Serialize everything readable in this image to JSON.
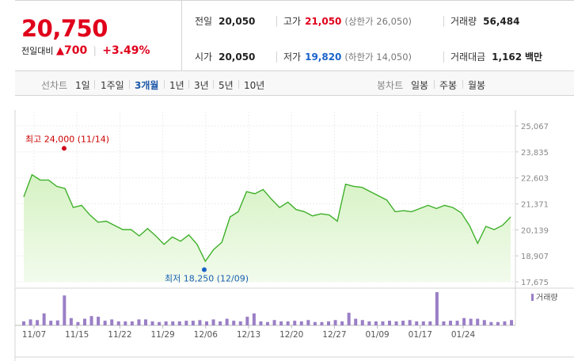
{
  "quote": {
    "price": "20,750",
    "change_label": "전일대비",
    "change_arrow": "▲",
    "change_amount": "700",
    "change_pct": "+3.49%",
    "prev_close_label": "전일",
    "prev_close": "20,050",
    "high_label": "고가",
    "high": "21,050",
    "upper_limit": "(상한가 26,050)",
    "volume_label": "거래량",
    "volume": "56,484",
    "open_label": "시가",
    "open": "20,050",
    "low_label": "저가",
    "low": "19,820",
    "lower_limit": "(하한가 14,050)",
    "value_label": "거래대금",
    "value": "1,162",
    "value_unit": "백만",
    "colors": {
      "up": "#e0001b",
      "down": "#1a63c9"
    }
  },
  "tabs": {
    "line_label": "선차트",
    "periods": [
      "1일",
      "1주일",
      "3개월",
      "1년",
      "3년",
      "5년",
      "10년"
    ],
    "active_period": "3개월",
    "candle_label": "봉차트",
    "candle_periods": [
      "일봉",
      "주봉",
      "월봉"
    ]
  },
  "chart_data": {
    "type": "area",
    "ylim": [
      17675,
      25067
    ],
    "yticks": [
      "25,067",
      "23,835",
      "22,603",
      "21,371",
      "20,139",
      "18,907",
      "17,675"
    ],
    "xticks": [
      "11/07",
      "11/15",
      "11/22",
      "11/29",
      "12/06",
      "12/13",
      "12/20",
      "12/27",
      "01/09",
      "01/17",
      "01/24"
    ],
    "series": [
      {
        "values": [
          21700,
          22750,
          22500,
          22500,
          22200,
          22100,
          21200,
          21300,
          20850,
          20500,
          20550,
          20350,
          20150,
          20150,
          19850,
          20200,
          19850,
          19450,
          19800,
          19600,
          19900,
          19450,
          18650,
          19200,
          19550,
          20750,
          21000,
          21950,
          21850,
          22050,
          21600,
          21200,
          21450,
          21100,
          21000,
          20800,
          20900,
          20850,
          20550,
          22300,
          22200,
          22150,
          21950,
          21750,
          21550,
          21000,
          21050,
          21000,
          21150,
          21300,
          21150,
          21300,
          21200,
          20950,
          20350,
          19500,
          20300,
          20150,
          20350,
          20750
        ]
      }
    ],
    "annotations": {
      "high": {
        "label": "최고 24,000 (11/14)",
        "value": 24000
      },
      "low": {
        "label": "최저 18,250 (12/09)",
        "value": 18250
      }
    },
    "line_color": "#3eb02a",
    "fill_color": "#d6f2c4",
    "volume": {
      "legend": "거래량",
      "bar_color": "#9a7fc6",
      "values": [
        0.12,
        0.18,
        0.16,
        0.36,
        0.14,
        0.15,
        0.9,
        0.22,
        0.1,
        0.2,
        0.28,
        0.26,
        0.14,
        0.18,
        0.12,
        0.12,
        0.12,
        0.18,
        0.18,
        0.12,
        0.1,
        0.12,
        0.12,
        0.12,
        0.14,
        0.14,
        0.16,
        0.12,
        0.18,
        0.12,
        0.2,
        0.14,
        0.12,
        0.26,
        0.36,
        0.12,
        0.1,
        0.16,
        0.12,
        0.12,
        0.14,
        0.12,
        0.16,
        0.1,
        0.1,
        0.12,
        0.16,
        0.12,
        0.38,
        0.2,
        0.16,
        0.12,
        0.12,
        0.12,
        0.14,
        0.12,
        0.14,
        0.16,
        0.12,
        0.12,
        0.12,
        1.0,
        0.12,
        0.14,
        0.14,
        0.22,
        0.2,
        0.2,
        0.16,
        0.1,
        0.1,
        0.12,
        0.16
      ]
    }
  }
}
